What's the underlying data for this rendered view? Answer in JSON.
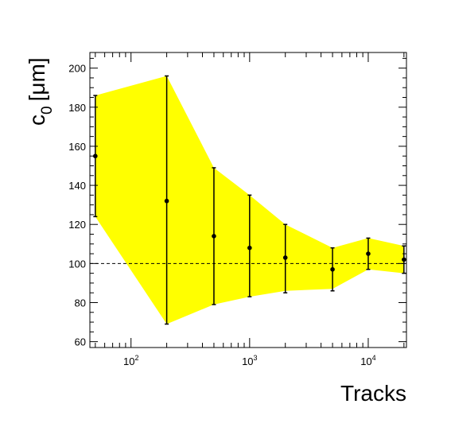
{
  "chart_data": {
    "type": "scatter",
    "title": "",
    "xlabel": "Tracks",
    "ylabel": "c",
    "ylabel_subscript": "0",
    "ylabel_unit": "[μm]",
    "x_scale": "log",
    "xlim": [
      45,
      21000
    ],
    "ylim": [
      57,
      208
    ],
    "x_ticks": [
      {
        "value": 100,
        "base": "10",
        "exp": "2"
      },
      {
        "value": 1000,
        "base": "10",
        "exp": "3"
      },
      {
        "value": 10000,
        "base": "10",
        "exp": "4"
      }
    ],
    "y_ticks": [
      60,
      80,
      100,
      120,
      140,
      160,
      180,
      200
    ],
    "reference_line": {
      "y": 100,
      "style": "dashed"
    },
    "band": {
      "color": "#ffff00",
      "x": [
        50,
        200,
        500,
        1000,
        2000,
        5000,
        10000,
        20000
      ],
      "upper": [
        186,
        196,
        149,
        135,
        120,
        108,
        113,
        109
      ],
      "lower": [
        124,
        69,
        79,
        83,
        86,
        87,
        97,
        95
      ]
    },
    "series": [
      {
        "x": [
          50,
          200,
          500,
          1000,
          2000,
          5000,
          10000,
          20000
        ],
        "y": [
          155,
          132,
          114,
          108,
          103,
          97,
          105,
          102
        ],
        "yerr_low": [
          124,
          69,
          79,
          83,
          85,
          86,
          97,
          95
        ],
        "yerr_high": [
          186,
          196,
          149,
          135,
          120,
          108,
          113,
          109
        ]
      }
    ],
    "grid": false
  }
}
